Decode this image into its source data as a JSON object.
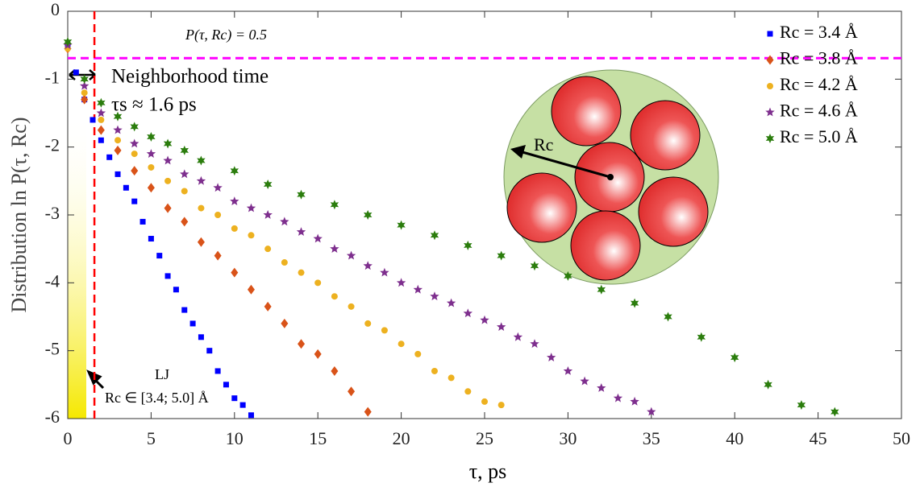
{
  "chart_data": {
    "type": "scatter",
    "xlabel": "τ, ps",
    "ylabel": "Distribution ln P(τ, Rc)",
    "xlim": [
      0,
      50
    ],
    "ylim": [
      -6,
      0
    ],
    "xticks": [
      0,
      5,
      10,
      15,
      20,
      25,
      30,
      35,
      40,
      45,
      50
    ],
    "yticks": [
      -6,
      -5,
      -4,
      -3,
      -2,
      -1,
      0
    ],
    "legend": "northeast",
    "hline": -0.69,
    "hline_color": "#ff00ff",
    "vline": 1.6,
    "vline_color": "#ff0000",
    "annotations": {
      "threshold_label": "P(τ, Rc) = 0.5",
      "neighborhood": "Neighborhood time",
      "tau_s": "τs ≈ 1.6 ps",
      "lj": "LJ",
      "rc_range": "Rc ∈ [3.4; 5.0] Å",
      "inset_label": "Rc"
    },
    "series": [
      {
        "name": "Rc = 3.4 Å",
        "color": "#0000ff",
        "marker": "square",
        "x": [
          0,
          0.5,
          1,
          1.5,
          2,
          2.5,
          3,
          3.5,
          4,
          4.5,
          5,
          5.5,
          6,
          6.5,
          7,
          7.5,
          8,
          8.5,
          9,
          9.5,
          10,
          10.5,
          11
        ],
        "values": [
          -0.5,
          -0.9,
          -1.3,
          -1.6,
          -1.9,
          -2.15,
          -2.4,
          -2.6,
          -2.8,
          -3.1,
          -3.35,
          -3.6,
          -3.9,
          -4.1,
          -4.4,
          -4.6,
          -4.8,
          -5.0,
          -5.3,
          -5.5,
          -5.7,
          -5.8,
          -5.95
        ]
      },
      {
        "name": "Rc = 3.8 Å",
        "color": "#d95319",
        "marker": "diamond",
        "x": [
          0,
          1,
          2,
          3,
          4,
          5,
          6,
          7,
          8,
          9,
          10,
          11,
          12,
          13,
          14,
          15,
          16,
          17,
          18
        ],
        "values": [
          -0.55,
          -1.3,
          -1.75,
          -2.05,
          -2.35,
          -2.6,
          -2.9,
          -3.1,
          -3.4,
          -3.6,
          -3.85,
          -4.1,
          -4.35,
          -4.6,
          -4.9,
          -5.05,
          -5.3,
          -5.6,
          -5.9
        ]
      },
      {
        "name": "Rc = 4.2 Å",
        "color": "#edb120",
        "marker": "circle",
        "x": [
          0,
          1,
          2,
          3,
          4,
          5,
          6,
          7,
          8,
          9,
          10,
          11,
          12,
          13,
          14,
          15,
          16,
          17,
          18,
          19,
          20,
          21,
          22,
          23,
          24,
          25,
          26
        ],
        "values": [
          -0.55,
          -1.2,
          -1.6,
          -1.9,
          -2.1,
          -2.3,
          -2.5,
          -2.65,
          -2.9,
          -3.0,
          -3.2,
          -3.3,
          -3.5,
          -3.7,
          -3.85,
          -4.0,
          -4.2,
          -4.35,
          -4.6,
          -4.7,
          -4.9,
          -5.05,
          -5.3,
          -5.4,
          -5.6,
          -5.75,
          -5.8
        ]
      },
      {
        "name": "Rc = 4.6 Å",
        "color": "#7e2f8e",
        "marker": "star",
        "x": [
          0,
          1,
          2,
          3,
          4,
          5,
          6,
          7,
          8,
          9,
          10,
          11,
          12,
          13,
          14,
          15,
          16,
          17,
          18,
          19,
          20,
          21,
          22,
          23,
          24,
          25,
          26,
          27,
          28,
          29,
          30,
          31,
          32,
          33,
          34,
          35
        ],
        "values": [
          -0.5,
          -1.1,
          -1.5,
          -1.75,
          -1.95,
          -2.1,
          -2.2,
          -2.4,
          -2.5,
          -2.6,
          -2.8,
          -2.9,
          -3.0,
          -3.1,
          -3.25,
          -3.35,
          -3.5,
          -3.6,
          -3.75,
          -3.85,
          -4.0,
          -4.1,
          -4.2,
          -4.3,
          -4.45,
          -4.55,
          -4.65,
          -4.8,
          -4.9,
          -5.1,
          -5.3,
          -5.45,
          -5.55,
          -5.7,
          -5.75,
          -5.9
        ]
      },
      {
        "name": "Rc = 5.0 Å",
        "color": "#2b7d0d",
        "marker": "hexagram",
        "x": [
          0,
          1,
          2,
          3,
          4,
          5,
          6,
          7,
          8,
          10,
          12,
          14,
          16,
          18,
          20,
          22,
          24,
          26,
          28,
          30,
          32,
          34,
          36,
          38,
          40,
          42,
          44,
          46
        ],
        "values": [
          -0.45,
          -1.0,
          -1.35,
          -1.55,
          -1.7,
          -1.85,
          -1.95,
          -2.05,
          -2.2,
          -2.35,
          -2.55,
          -2.7,
          -2.85,
          -3.0,
          -3.15,
          -3.3,
          -3.45,
          -3.6,
          -3.75,
          -3.9,
          -4.1,
          -4.3,
          -4.5,
          -4.8,
          -5.1,
          -5.5,
          -5.8,
          -5.9
        ]
      }
    ]
  }
}
